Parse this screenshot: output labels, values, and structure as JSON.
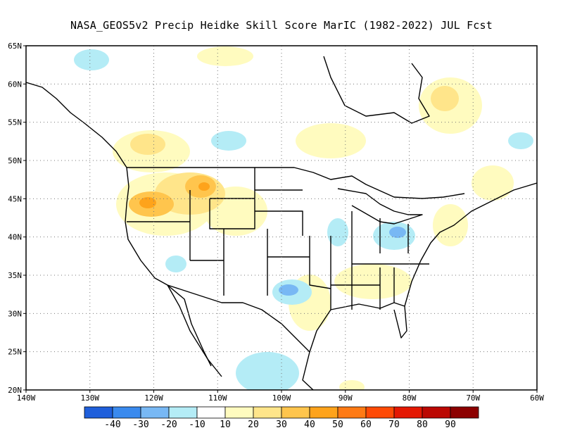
{
  "title": "NASA_GEOS5v2 Precip Heidke Skill Score MarIC (1982-2022) JUL Fcst",
  "map": {
    "lon_range": [
      -140,
      -60
    ],
    "lat_range": [
      20,
      65
    ],
    "lon_ticks": [
      "140W",
      "130W",
      "120W",
      "110W",
      "100W",
      "90W",
      "80W",
      "70W",
      "60W"
    ],
    "lat_ticks": [
      "20N",
      "25N",
      "30N",
      "35N",
      "40N",
      "45N",
      "50N",
      "55N",
      "60N",
      "65N"
    ],
    "grid": "dotted"
  },
  "colorbar": {
    "colors": [
      "#1f5fdb",
      "#3a8aee",
      "#78b8f4",
      "#b4ecf6",
      "#ffffff",
      "#fffbbf",
      "#ffe58a",
      "#ffc54d",
      "#fea31b",
      "#ff7a14",
      "#ff4a05",
      "#e41802",
      "#bb0802",
      "#8c0000"
    ],
    "labels": [
      "-40",
      "-30",
      "-20",
      "-10",
      "10",
      "20",
      "30",
      "40",
      "50",
      "60",
      "70",
      "80",
      "90"
    ]
  },
  "score_regions": [
    {
      "lon": -121,
      "lat": 46,
      "category": "30"
    },
    {
      "lon": -113,
      "lat": 45.5,
      "category": "40"
    },
    {
      "lon": -118,
      "lat": 51,
      "category": "20"
    },
    {
      "lon": -103,
      "lat": 31,
      "category": "-20"
    },
    {
      "lon": -82,
      "lat": 41,
      "category": "-20"
    },
    {
      "lon": -98,
      "lat": 23,
      "category": "-10"
    },
    {
      "lon": -126,
      "lat": 61,
      "category": "-10"
    },
    {
      "lon": -77,
      "lat": 57,
      "category": "20"
    },
    {
      "lon": -90,
      "lat": 44,
      "category": "-10"
    }
  ]
}
